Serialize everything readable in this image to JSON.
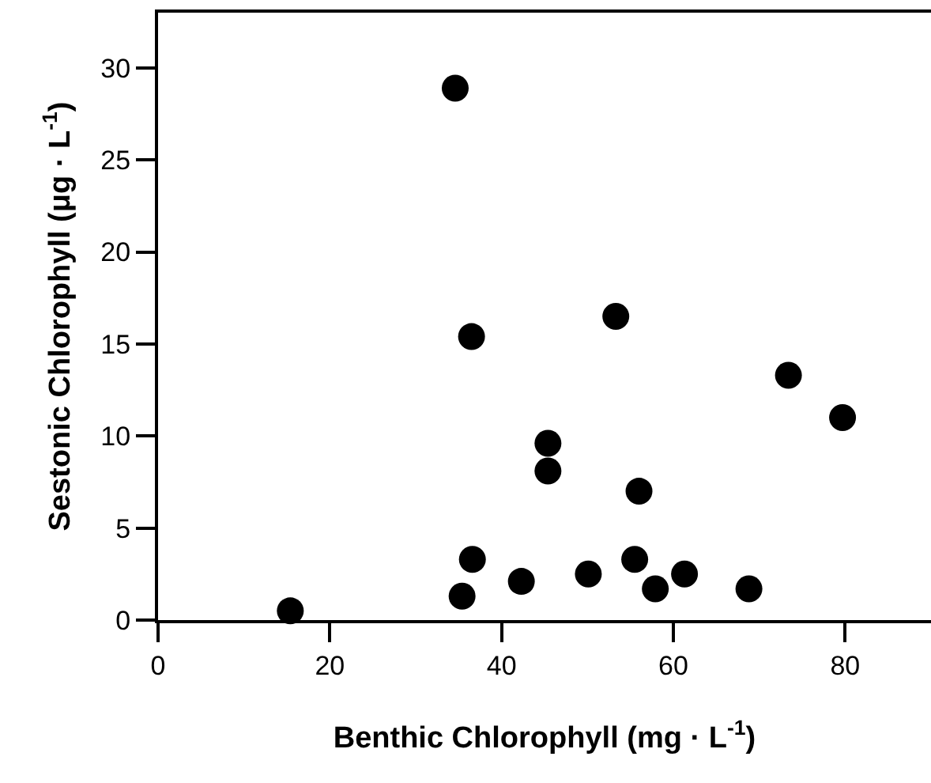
{
  "chart_data": {
    "type": "scatter",
    "xlabel": "Benthic Chlorophyll (mg · L$^{-1}$)",
    "ylabel": "Sestonic Chlorophyll (μg · L$^{-1}$)",
    "x": [
      15.4,
      34.6,
      36.5,
      35.4,
      36.6,
      42.3,
      45.4,
      45.4,
      50.1,
      53.3,
      56.0,
      55.5,
      57.9,
      61.3,
      68.8,
      73.4,
      79.7
    ],
    "values": [
      0.5,
      28.9,
      15.4,
      1.3,
      3.3,
      2.1,
      9.6,
      8.1,
      2.5,
      16.5,
      7.0,
      3.3,
      1.7,
      2.5,
      1.7,
      13.3,
      11.0
    ],
    "color": "#000000",
    "marker": "circle",
    "xlim": [
      0,
      90
    ],
    "xticks": [
      0,
      20,
      40,
      60,
      80
    ],
    "ylim": [
      0,
      33
    ],
    "yticks": [
      0,
      5,
      10,
      15,
      20,
      25,
      30
    ]
  }
}
